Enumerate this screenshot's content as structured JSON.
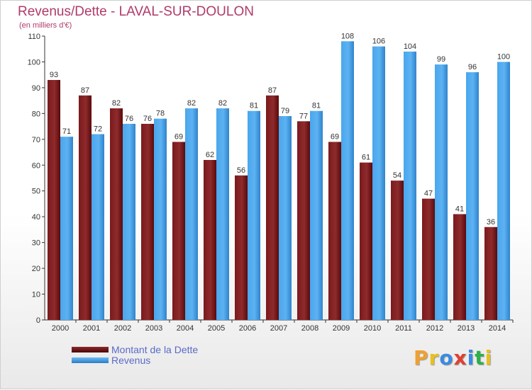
{
  "title": "Revenus/Dette - LAVAL-SUR-DOULON",
  "subtitle": "(en milliers d'€)",
  "logo": {
    "letters": [
      "P",
      "r",
      "o",
      "x",
      "i",
      "t",
      "i"
    ],
    "colors": [
      "#f0a030",
      "#e8c020",
      "#3a8be0",
      "#e04030",
      "#3a8be0",
      "#2fb04a",
      "#e8c020"
    ]
  },
  "legend": {
    "position": "bottom-left",
    "items": [
      {
        "label": "Montant de la Dette",
        "color": "#6b0f12"
      },
      {
        "label": "Revenus",
        "color": "#3a94dd"
      }
    ]
  },
  "chart_data": {
    "type": "bar",
    "categories": [
      "2000",
      "2001",
      "2002",
      "2003",
      "2004",
      "2005",
      "2006",
      "2007",
      "2008",
      "2009",
      "2010",
      "2011",
      "2012",
      "2013",
      "2014"
    ],
    "series": [
      {
        "name": "Montant de la Dette",
        "color": "#6b0f12",
        "values": [
          93,
          87,
          82,
          76,
          69,
          62,
          56,
          87,
          77,
          69,
          61,
          54,
          47,
          41,
          36
        ]
      },
      {
        "name": "Revenus",
        "color": "#3a94dd",
        "values": [
          71,
          72,
          76,
          78,
          82,
          82,
          81,
          79,
          81,
          108,
          106,
          104,
          99,
          96,
          100
        ]
      }
    ],
    "ylim": [
      0,
      110
    ],
    "yticks": [
      0,
      10,
      20,
      30,
      40,
      50,
      60,
      70,
      80,
      90,
      100,
      110
    ],
    "grid": false,
    "data_labels": true
  }
}
